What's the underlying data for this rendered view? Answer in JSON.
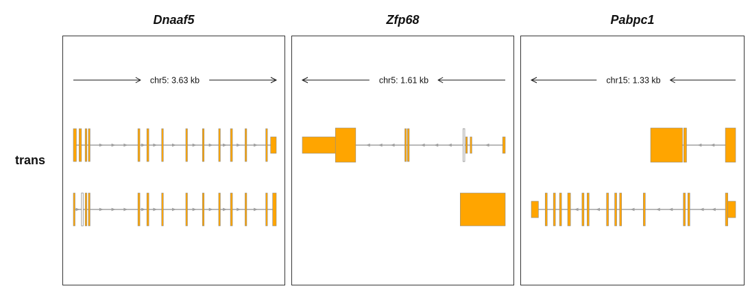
{
  "row_label": "trans",
  "colors": {
    "exon_fill": "#FFA500",
    "exon_stroke": "#8C8C8C",
    "intron": "#A0A0A0",
    "frame": "#333333"
  },
  "panels": [
    {
      "gene": "Dnaaf5",
      "scale_label": "chr5: 3.63 kb",
      "direction": "right",
      "transcripts": [
        {
          "strand": "+",
          "exons": [
            [
              0.0,
              0.015,
              "tall"
            ],
            [
              0.028,
              0.04,
              "tall"
            ],
            [
              0.058,
              0.062,
              "tall"
            ],
            [
              0.074,
              0.078,
              "tall"
            ],
            [
              0.318,
              0.328,
              "tall"
            ],
            [
              0.362,
              0.372,
              "tall"
            ],
            [
              0.435,
              0.439,
              "tall"
            ],
            [
              0.554,
              0.558,
              "tall"
            ],
            [
              0.636,
              0.64,
              "tall"
            ],
            [
              0.716,
              0.72,
              "tall"
            ],
            [
              0.774,
              0.784,
              "tall"
            ],
            [
              0.846,
              0.85,
              "tall"
            ],
            [
              0.948,
              0.952,
              "tall"
            ],
            [
              0.972,
              1.0,
              "small"
            ]
          ]
        },
        {
          "strand": "+",
          "exons": [
            [
              0.0,
              0.004,
              "tall"
            ],
            [
              0.04,
              0.044,
              "thin"
            ],
            [
              0.058,
              0.062,
              "tall"
            ],
            [
              0.074,
              0.078,
              "tall"
            ],
            [
              0.318,
              0.328,
              "tall"
            ],
            [
              0.362,
              0.372,
              "tall"
            ],
            [
              0.435,
              0.439,
              "tall"
            ],
            [
              0.554,
              0.558,
              "tall"
            ],
            [
              0.636,
              0.64,
              "tall"
            ],
            [
              0.716,
              0.72,
              "tall"
            ],
            [
              0.774,
              0.784,
              "tall"
            ],
            [
              0.846,
              0.85,
              "tall"
            ],
            [
              0.948,
              0.952,
              "tall"
            ],
            [
              0.982,
              1.0,
              "tall"
            ]
          ]
        }
      ]
    },
    {
      "gene": "Zfp68",
      "scale_label": "chr5: 1.61 kb",
      "direction": "left",
      "transcripts": [
        {
          "strand": "-",
          "exons": [
            [
              0.0,
              0.163,
              "small"
            ],
            [
              0.163,
              0.263,
              "big"
            ],
            [
              0.505,
              0.512,
              "tall"
            ],
            [
              0.518,
              0.527,
              "tall"
            ],
            [
              0.792,
              0.795,
              "thin"
            ],
            [
              0.805,
              0.813,
              "small"
            ],
            [
              0.827,
              0.834,
              "small"
            ],
            [
              0.987,
              1.0,
              "small"
            ]
          ]
        },
        {
          "strand": "-",
          "exons": [
            [
              0.778,
              1.0,
              "huge"
            ]
          ]
        }
      ]
    },
    {
      "gene": "Pabpc1",
      "scale_label": "chr15: 1.33 kb",
      "direction": "left",
      "transcripts": [
        {
          "strand": "-",
          "exons": [
            [
              0.584,
              0.74,
              "big"
            ],
            [
              0.746,
              0.76,
              "big"
            ],
            [
              0.95,
              1.0,
              "big"
            ]
          ]
        },
        {
          "strand": "-",
          "exons": [
            [
              0.0,
              0.035,
              "small"
            ],
            [
              0.068,
              0.078,
              "tall"
            ],
            [
              0.108,
              0.118,
              "tall"
            ],
            [
              0.138,
              0.148,
              "tall"
            ],
            [
              0.178,
              0.192,
              "tall"
            ],
            [
              0.248,
              0.258,
              "tall"
            ],
            [
              0.273,
              0.283,
              "tall"
            ],
            [
              0.368,
              0.378,
              "tall"
            ],
            [
              0.408,
              0.418,
              "tall"
            ],
            [
              0.432,
              0.442,
              "tall"
            ],
            [
              0.548,
              0.558,
              "tall"
            ],
            [
              0.744,
              0.754,
              "tall"
            ],
            [
              0.766,
              0.776,
              "tall"
            ],
            [
              0.95,
              0.962,
              "tall"
            ],
            [
              0.962,
              1.0,
              "small"
            ]
          ]
        }
      ]
    }
  ]
}
